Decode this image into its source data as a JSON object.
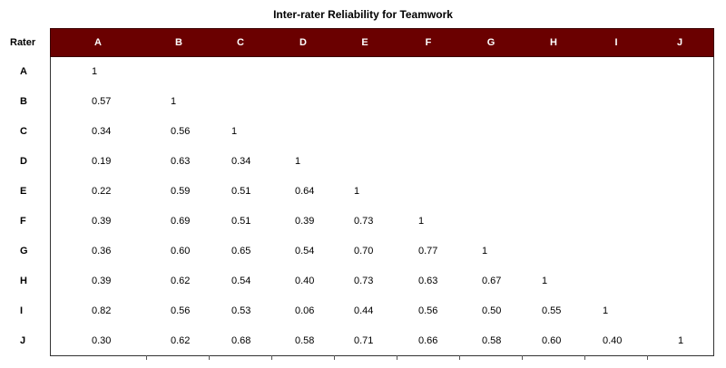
{
  "title": "Inter-rater Reliability for Teamwork",
  "rater_header": "Rater",
  "columns": [
    "A",
    "B",
    "C",
    "D",
    "E",
    "F",
    "G",
    "H",
    "I",
    "J"
  ],
  "rows": [
    {
      "label": "A",
      "values": [
        "1"
      ]
    },
    {
      "label": "B",
      "values": [
        "0.57",
        "1"
      ]
    },
    {
      "label": "C",
      "values": [
        "0.34",
        "0.56",
        "1"
      ]
    },
    {
      "label": "D",
      "values": [
        "0.19",
        "0.63",
        "0.34",
        "1"
      ]
    },
    {
      "label": "E",
      "values": [
        "0.22",
        "0.59",
        "0.51",
        "0.64",
        "1"
      ]
    },
    {
      "label": "F",
      "values": [
        "0.39",
        "0.69",
        "0.51",
        "0.39",
        "0.73",
        "1"
      ]
    },
    {
      "label": "G",
      "values": [
        "0.36",
        "0.60",
        "0.65",
        "0.54",
        "0.70",
        "0.77",
        "1"
      ]
    },
    {
      "label": "H",
      "values": [
        "0.39",
        "0.62",
        "0.54",
        "0.40",
        "0.73",
        "0.63",
        "0.67",
        "1"
      ]
    },
    {
      "label": "I",
      "values": [
        "0.82",
        "0.56",
        "0.53",
        "0.06",
        "0.44",
        "0.56",
        "0.50",
        "0.55",
        "1"
      ]
    },
    {
      "label": "J",
      "values": [
        "0.30",
        "0.62",
        "0.68",
        "0.58",
        "0.71",
        "0.66",
        "0.58",
        "0.60",
        "0.40",
        "1"
      ]
    }
  ],
  "colors": {
    "header_band": "#6a0000",
    "header_text": "#ffffff"
  }
}
